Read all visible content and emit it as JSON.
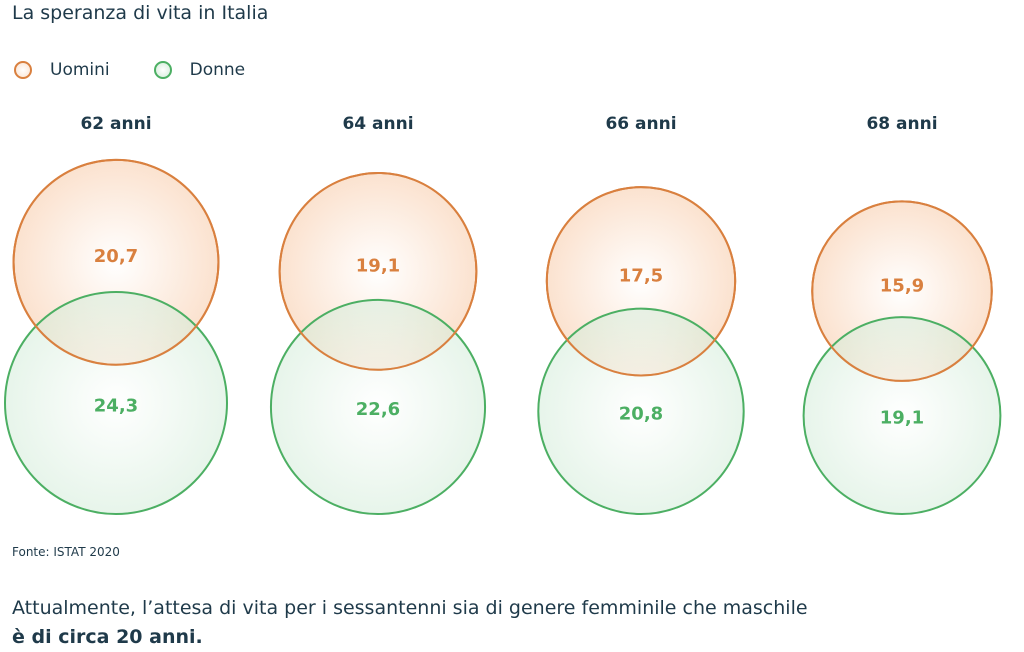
{
  "title": "La speranza di vita in Italia",
  "legend": {
    "uomini": "Uomini",
    "donne": "Donne"
  },
  "colors": {
    "uomini": "#d9803f",
    "donne": "#4caf63",
    "uomini_fill": "#fbe2cf",
    "donne_fill": "#d3ecd9",
    "text": "#1f3a4a"
  },
  "chart_data": {
    "type": "bubble",
    "title": "La speranza di vita in Italia",
    "categories": [
      "62 anni",
      "64 anni",
      "66 anni",
      "68 anni"
    ],
    "series": [
      {
        "name": "Uomini",
        "values": [
          20.7,
          19.1,
          17.5,
          15.9
        ],
        "labels": [
          "20,7",
          "19,1",
          "17,5",
          "15,9"
        ]
      },
      {
        "name": "Donne",
        "values": [
          24.3,
          22.6,
          20.8,
          19.1
        ],
        "labels": [
          "24,3",
          "22,6",
          "20,8",
          "19,1"
        ]
      }
    ],
    "legend_placement": "top-left",
    "grid": false
  },
  "source": "Fonte: ISTAT 2020",
  "footnote": {
    "line1": "Attualmente, l’attesa di vita per i sessantenni sia di genere femminile che maschile",
    "line2": "è di circa 20 anni."
  }
}
